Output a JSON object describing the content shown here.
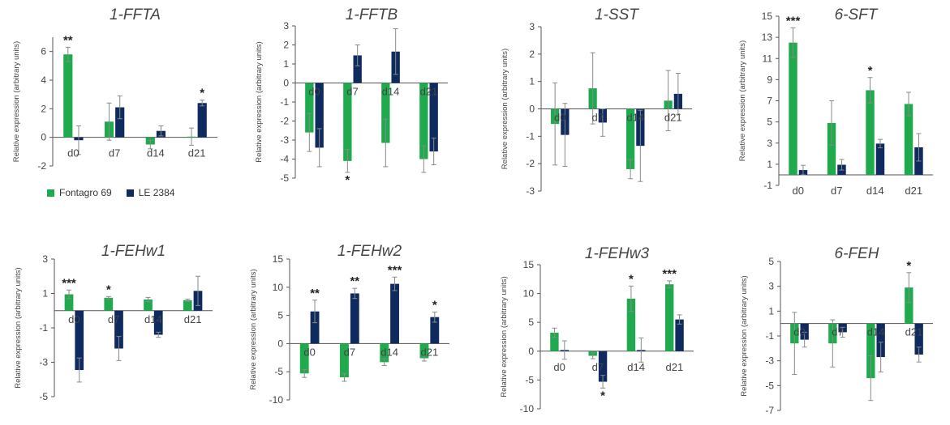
{
  "colors": {
    "fontagro": "#1faa4e",
    "le": "#0e2a5e",
    "axis": "#555555",
    "text": "#444444"
  },
  "legend": [
    {
      "name": "Fontagro 69",
      "color": "#1faa4e"
    },
    {
      "name": "LE 2384",
      "color": "#0e2a5e"
    }
  ],
  "chart_data": [
    {
      "type": "bar",
      "title": "1-FFTA",
      "ylabel": "Relative expression (arbitrary units)",
      "categories": [
        "d0",
        "d7",
        "d14",
        "d21"
      ],
      "ylim": [
        -2,
        7
      ],
      "yticks": [
        -2,
        0,
        2,
        4,
        6
      ],
      "yticks_labels": [
        "-2",
        "0",
        "2",
        "4",
        "6"
      ],
      "tick_labels_at_zero": false,
      "series": [
        {
          "name": "Fontagro 69",
          "values": [
            5.8,
            1.1,
            -0.5,
            0.05
          ],
          "errors": [
            0.5,
            1.3,
            0.3,
            0.6
          ]
        },
        {
          "name": "LE 2384",
          "values": [
            -0.2,
            2.1,
            0.45,
            2.4
          ],
          "errors": [
            1.0,
            0.8,
            0.35,
            0.2
          ]
        }
      ],
      "annotations": [
        {
          "category": 0,
          "series": 0,
          "text": "**"
        },
        {
          "category": 3,
          "series": 1,
          "text": "*"
        }
      ]
    },
    {
      "type": "bar",
      "title": "1-FFTB",
      "ylabel": "Relative expression (arbitrary units)",
      "categories": [
        "d0",
        "d7",
        "d14",
        "d21"
      ],
      "ylim": [
        -5,
        3
      ],
      "yticks": [
        -5,
        -4,
        -3,
        -2,
        -1,
        0,
        1,
        2,
        3
      ],
      "yticks_labels": [
        "-5",
        "-4",
        "-3",
        "-2",
        "-1",
        "0",
        "1",
        "2",
        "3"
      ],
      "tick_labels_at_zero": true,
      "series": [
        {
          "name": "Fontagro 69",
          "values": [
            -2.6,
            -4.1,
            -3.15,
            -4.0
          ],
          "errors": [
            1.0,
            0.6,
            1.25,
            0.7
          ]
        },
        {
          "name": "LE 2384",
          "values": [
            -3.4,
            1.45,
            1.65,
            -3.6
          ],
          "errors": [
            1.0,
            0.55,
            1.2,
            0.7
          ]
        }
      ],
      "annotations": [
        {
          "category": 1,
          "series": 0,
          "text": "*"
        }
      ]
    },
    {
      "type": "bar",
      "title": "1-SST",
      "ylabel": "Relative expression (arbitrary units)",
      "categories": [
        "d0",
        "d7",
        "d14",
        "d21"
      ],
      "ylim": [
        -3,
        3
      ],
      "yticks": [
        -3,
        -2,
        -1,
        0,
        1,
        2,
        3
      ],
      "yticks_labels": [
        "-3",
        "-2",
        "-1",
        "0",
        "1",
        "2",
        "3"
      ],
      "tick_labels_at_zero": true,
      "series": [
        {
          "name": "Fontagro 69",
          "values": [
            -0.55,
            0.75,
            -2.2,
            0.3
          ],
          "errors": [
            1.5,
            1.3,
            0.35,
            1.1
          ]
        },
        {
          "name": "LE 2384",
          "values": [
            -0.95,
            -0.5,
            -1.35,
            0.55
          ],
          "errors": [
            1.15,
            0.5,
            1.3,
            0.75
          ]
        }
      ],
      "annotations": []
    },
    {
      "type": "bar",
      "title": "6-SFT",
      "ylabel": "Relative expression (arbitrary units)",
      "categories": [
        "d0",
        "d7",
        "d14",
        "d21"
      ],
      "ylim": [
        -1,
        15
      ],
      "yticks": [
        -1,
        1,
        3,
        5,
        7,
        9,
        11,
        13,
        15
      ],
      "yticks_labels": [
        "-1",
        "1",
        "3",
        "5",
        "7",
        "9",
        "11",
        "13",
        "15"
      ],
      "tick_labels_at_zero": false,
      "series": [
        {
          "name": "Fontagro 69",
          "values": [
            12.5,
            4.9,
            8.0,
            6.7
          ],
          "errors": [
            1.4,
            2.1,
            1.2,
            1.1
          ]
        },
        {
          "name": "LE 2384",
          "values": [
            0.45,
            0.95,
            2.95,
            2.6
          ],
          "errors": [
            0.45,
            0.5,
            0.4,
            1.3
          ]
        }
      ],
      "annotations": [
        {
          "category": 0,
          "series": 0,
          "text": "***"
        },
        {
          "category": 2,
          "series": 0,
          "text": "*"
        }
      ]
    },
    {
      "type": "bar",
      "title": "1-FEHw1",
      "ylabel": "Relative expression (arbitrary units)",
      "categories": [
        "d0",
        "d7",
        "d14",
        "d21"
      ],
      "ylim": [
        -5,
        3
      ],
      "yticks": [
        -5,
        -3,
        -1,
        1,
        3
      ],
      "yticks_labels": [
        "-5",
        "-3",
        "-1",
        "1",
        "3"
      ],
      "tick_labels_at_zero": true,
      "series": [
        {
          "name": "Fontagro 69",
          "values": [
            0.95,
            0.75,
            0.65,
            0.6
          ],
          "errors": [
            0.25,
            0.07,
            0.12,
            0.07
          ]
        },
        {
          "name": "LE 2384",
          "values": [
            -3.45,
            -2.2,
            -1.4,
            1.15
          ],
          "errors": [
            0.7,
            0.7,
            0.15,
            0.85
          ]
        }
      ],
      "annotations": [
        {
          "category": 0,
          "series": 0,
          "text": "***"
        },
        {
          "category": 1,
          "series": 0,
          "text": "*"
        }
      ]
    },
    {
      "type": "bar",
      "title": "1-FEHw2",
      "ylabel": "Relative expression (arbitrary units)",
      "categories": [
        "d0",
        "d7",
        "d14",
        "d21"
      ],
      "ylim": [
        -10,
        15
      ],
      "yticks": [
        -10,
        -5,
        0,
        5,
        10,
        15
      ],
      "yticks_labels": [
        "-10",
        "-5",
        "0",
        "5",
        "10",
        "15"
      ],
      "tick_labels_at_zero": true,
      "series": [
        {
          "name": "Fontagro 69",
          "values": [
            -5.3,
            -6.0,
            -3.3,
            -2.6
          ],
          "errors": [
            0.7,
            0.7,
            0.6,
            0.5
          ]
        },
        {
          "name": "LE 2384",
          "values": [
            5.7,
            8.9,
            10.6,
            4.7
          ],
          "errors": [
            2.0,
            0.9,
            1.2,
            0.9
          ]
        }
      ],
      "annotations": [
        {
          "category": 0,
          "series": 1,
          "text": "**"
        },
        {
          "category": 1,
          "series": 1,
          "text": "**"
        },
        {
          "category": 2,
          "series": 1,
          "text": "***"
        },
        {
          "category": 3,
          "series": 1,
          "text": "*"
        }
      ]
    },
    {
      "type": "bar",
      "title": "1-FEHw3",
      "ylabel": "Relative expression (arbitrary units)",
      "categories": [
        "d0",
        "d7",
        "d14",
        "d21"
      ],
      "ylim": [
        -10,
        15
      ],
      "yticks": [
        -10,
        -5,
        0,
        5,
        10,
        15
      ],
      "yticks_labels": [
        "-10",
        "-5",
        "0",
        "5",
        "10",
        "15"
      ],
      "tick_labels_at_zero": false,
      "series": [
        {
          "name": "Fontagro 69",
          "values": [
            3.2,
            -0.8,
            9.1,
            11.6
          ],
          "errors": [
            0.8,
            0.5,
            2.2,
            0.6
          ]
        },
        {
          "name": "LE 2384",
          "values": [
            0.2,
            -5.3,
            0.2,
            5.5
          ],
          "errors": [
            1.6,
            1.1,
            2.1,
            0.8
          ]
        }
      ],
      "annotations": [
        {
          "category": 1,
          "series": 1,
          "text": "*",
          "below": true
        },
        {
          "category": 2,
          "series": 0,
          "text": "*"
        },
        {
          "category": 3,
          "series": 0,
          "text": "***"
        }
      ]
    },
    {
      "type": "bar",
      "title": "6-FEH",
      "ylabel": "Relative expression (arbitrary units)",
      "categories": [
        "d0",
        "d7",
        "d14",
        "d21"
      ],
      "ylim": [
        -7,
        5
      ],
      "yticks": [
        -7,
        -5,
        -3,
        -1,
        1,
        3,
        5
      ],
      "yticks_labels": [
        "-7",
        "-5",
        "-3",
        "-1",
        "1",
        "3",
        "5"
      ],
      "tick_labels_at_zero": true,
      "series": [
        {
          "name": "Fontagro 69",
          "values": [
            -1.6,
            -1.6,
            -4.4,
            2.9
          ],
          "errors": [
            2.5,
            1.9,
            1.8,
            1.2
          ]
        },
        {
          "name": "LE 2384",
          "values": [
            -1.3,
            -0.7,
            -2.7,
            -2.5
          ],
          "errors": [
            0.6,
            0.4,
            1.2,
            0.6
          ]
        }
      ],
      "annotations": [
        {
          "category": 3,
          "series": 0,
          "text": "*"
        }
      ]
    }
  ]
}
